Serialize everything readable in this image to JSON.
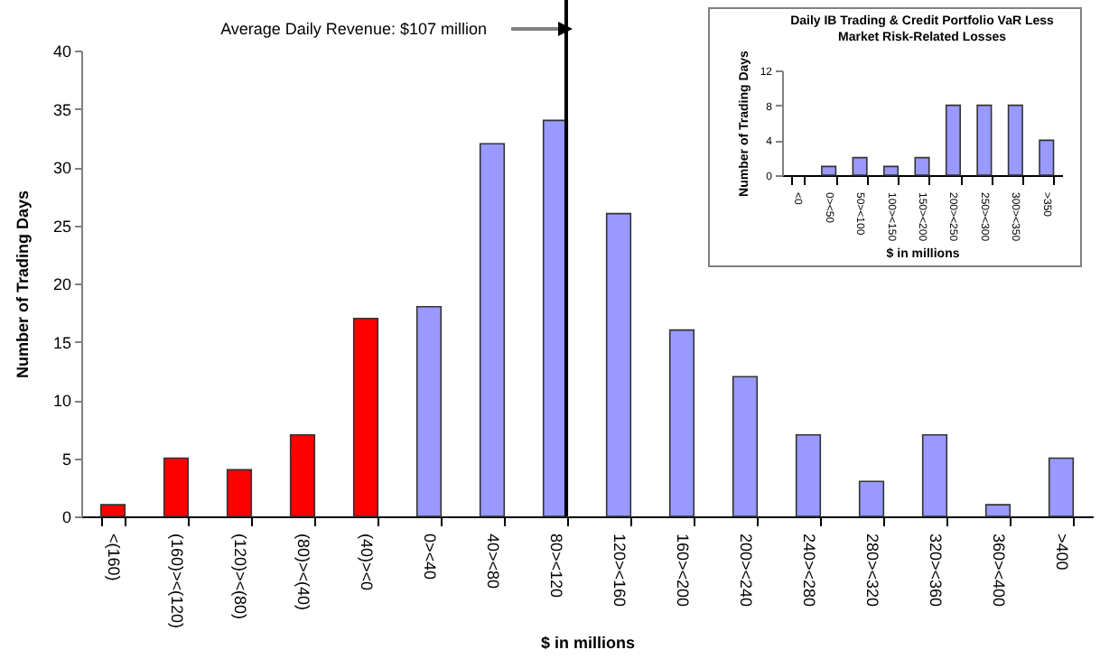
{
  "chart_data": [
    {
      "type": "bar",
      "xlabel": "$ in millions",
      "ylabel": "Number of Trading Days",
      "categories": [
        "<(160)",
        "(160)><(120)",
        "(120)><(80)",
        "(80)><(40)",
        "(40)><0",
        "0><40",
        "40><80",
        "80><120",
        "120><160",
        "160><200",
        "200><240",
        "240><280",
        "280><320",
        "320><360",
        "360><400",
        ">400"
      ],
      "values": [
        1,
        5,
        4,
        7,
        17,
        18,
        32,
        34,
        26,
        16,
        12,
        7,
        3,
        7,
        1,
        5
      ],
      "colors": [
        "#ff0000",
        "#ff0000",
        "#ff0000",
        "#ff0000",
        "#ff0000",
        "#9999ff",
        "#9999ff",
        "#9999ff",
        "#9999ff",
        "#9999ff",
        "#9999ff",
        "#9999ff",
        "#9999ff",
        "#9999ff",
        "#9999ff",
        "#9999ff"
      ],
      "ylim": [
        0,
        40
      ],
      "yticks": [
        0,
        5,
        10,
        15,
        20,
        25,
        30,
        35,
        40
      ],
      "ref_lines": [
        {
          "axis": "x",
          "value": "80><120",
          "label": "Average Daily Revenue: $107 million",
          "color": "#000000"
        }
      ]
    },
    {
      "type": "bar",
      "title": "Daily IB Trading & Credit Portfolio VaR Less\nMarket Risk-Related Losses",
      "xlabel": "$ in millions",
      "ylabel": "Number of Trading Days",
      "categories": [
        "<0",
        "0><50",
        "50><100",
        "100><150",
        "150><200",
        "200><250",
        "250><300",
        "300><350",
        ">350"
      ],
      "values": [
        0,
        1,
        2,
        1,
        2,
        8,
        8,
        8,
        4
      ],
      "color": "#9999ff",
      "ylim": [
        0,
        12
      ],
      "yticks": [
        0,
        4,
        8,
        12
      ]
    }
  ]
}
